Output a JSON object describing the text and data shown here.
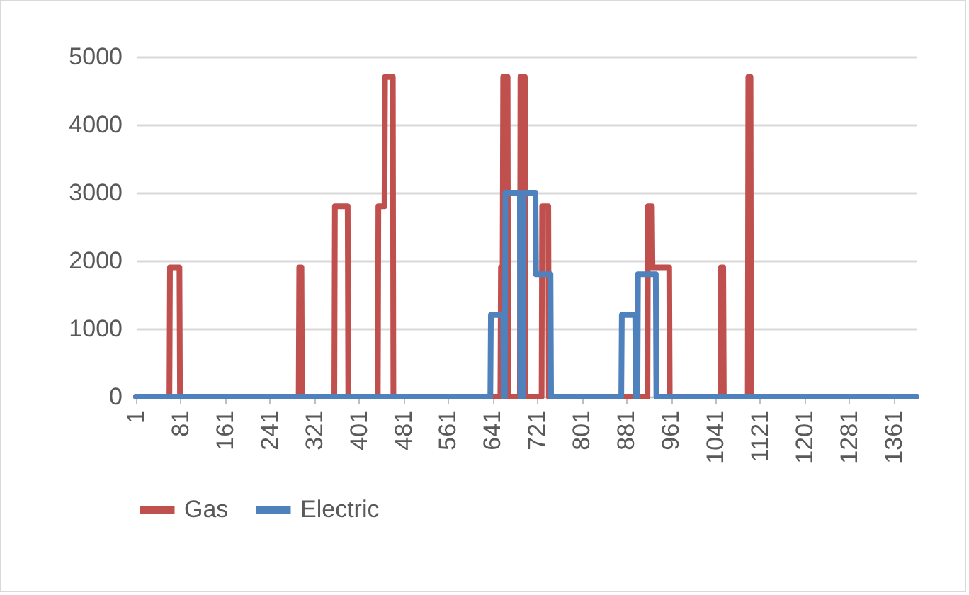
{
  "chart_data": {
    "type": "line",
    "xlim": [
      1,
      1402
    ],
    "xticks": [
      1,
      81,
      161,
      241,
      321,
      401,
      481,
      561,
      641,
      721,
      801,
      881,
      961,
      1041,
      1121,
      1201,
      1281,
      1361
    ],
    "ylim": [
      0,
      5000
    ],
    "yticks": [
      0,
      1000,
      2000,
      3000,
      4000,
      5000
    ],
    "grid": "y",
    "legend": "bottom",
    "marker": "none",
    "line_style": "solid",
    "series": [
      {
        "name": "Gas",
        "color": "#c0504d",
        "x": [
          1,
          61,
          62,
          79,
          80,
          293,
          294,
          298,
          299,
          357,
          358,
          381,
          382,
          435,
          436,
          447,
          448,
          462,
          463,
          655,
          656,
          659,
          660,
          668,
          669,
          690,
          691,
          699,
          700,
          729,
          730,
          741,
          742,
          919,
          920,
          927,
          928,
          958,
          959,
          1050,
          1051,
          1055,
          1056,
          1099,
          1100,
          1104,
          1105,
          1402
        ],
        "values": [
          0,
          0,
          1900,
          1900,
          0,
          0,
          1900,
          1900,
          0,
          0,
          2800,
          2800,
          0,
          0,
          2800,
          2800,
          4700,
          4700,
          0,
          0,
          1900,
          1900,
          4700,
          4700,
          0,
          0,
          4700,
          4700,
          0,
          0,
          2800,
          2800,
          0,
          0,
          2800,
          2800,
          1900,
          1900,
          0,
          0,
          1900,
          1900,
          0,
          0,
          4700,
          4700,
          0,
          0
        ]
      },
      {
        "name": "Electric",
        "color": "#4f81bd",
        "x": [
          1,
          637,
          638,
          660,
          661,
          663,
          664,
          690,
          691,
          696,
          697,
          718,
          719,
          745,
          746,
          872,
          873,
          897,
          898,
          901,
          902,
          934,
          935,
          1402
        ],
        "values": [
          0,
          0,
          1200,
          1200,
          0,
          0,
          3000,
          3000,
          0,
          0,
          3000,
          3000,
          1800,
          1800,
          0,
          0,
          1200,
          1200,
          0,
          0,
          1800,
          1800,
          0,
          0
        ]
      }
    ]
  }
}
